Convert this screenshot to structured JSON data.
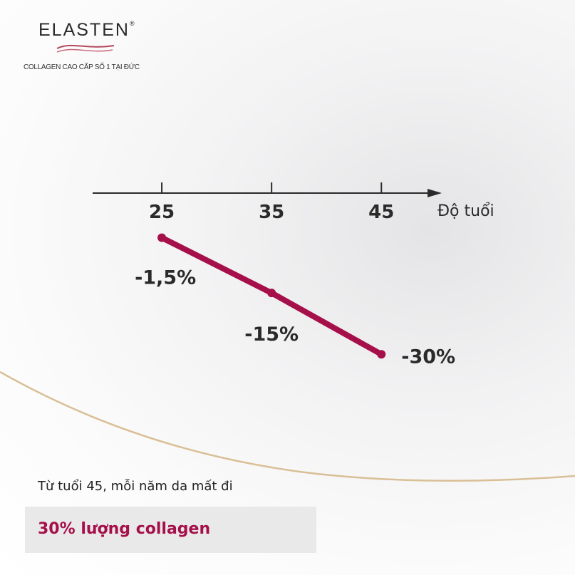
{
  "brand": {
    "name": "ELASTEN",
    "mark": "®",
    "tagline": "COLLAGEN CAO CẤP SỐ 1 TẠI ĐỨC"
  },
  "chart_data": {
    "type": "line",
    "x_label": "Độ tuổi",
    "x": [
      25,
      35,
      45
    ],
    "xlim": [
      18.7,
      50.5
    ],
    "xticks": [
      25,
      35,
      45
    ],
    "series": [
      {
        "color": "#a5104a",
        "values": [
          -1.5,
          -15,
          -30
        ],
        "value_labels": [
          "-1,5%",
          "-15%",
          "-30%"
        ]
      }
    ],
    "ylim": [
      -35,
      0
    ]
  },
  "note": "Từ tuổi 45, mỗi năm da mất đi",
  "highlight": "30% lượng collagen"
}
